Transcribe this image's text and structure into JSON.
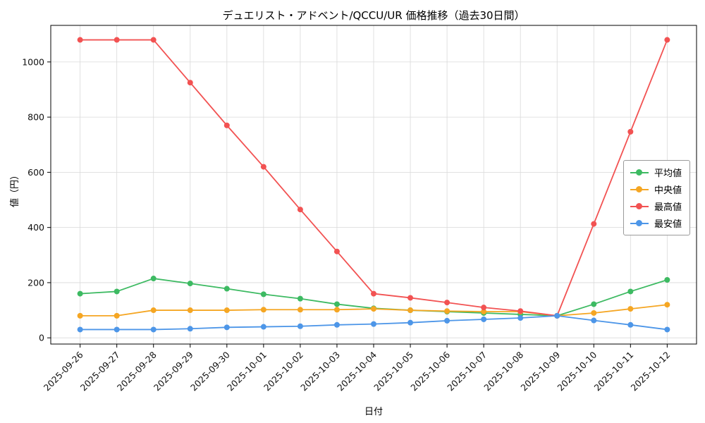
{
  "chart_data": {
    "type": "line",
    "title": "デュエリスト・アドベント/QCCU/UR 価格推移（過去30日間）",
    "xlabel": "日付",
    "ylabel": "値（円）",
    "categories": [
      "2025-09-26",
      "2025-09-27",
      "2025-09-28",
      "2025-09-29",
      "2025-09-30",
      "2025-10-01",
      "2025-10-02",
      "2025-10-03",
      "2025-10-04",
      "2025-10-05",
      "2025-10-06",
      "2025-10-07",
      "2025-10-08",
      "2025-10-09",
      "2025-10-10",
      "2025-10-11",
      "2025-10-12"
    ],
    "series": [
      {
        "name": "平均値",
        "color": "#3dba62",
        "values": [
          160,
          168,
          215,
          197,
          178,
          158,
          142,
          122,
          107,
          100,
          95,
          90,
          85,
          80,
          122,
          168,
          210
        ]
      },
      {
        "name": "中央値",
        "color": "#f5a623",
        "values": [
          80,
          80,
          100,
          100,
          100,
          102,
          102,
          102,
          105,
          100,
          97,
          95,
          95,
          80,
          90,
          105,
          120
        ]
      },
      {
        "name": "最高値",
        "color": "#f25252",
        "values": [
          1080,
          1080,
          1080,
          925,
          770,
          620,
          465,
          313,
          160,
          145,
          128,
          110,
          97,
          80,
          413,
          747,
          1080
        ]
      },
      {
        "name": "最安値",
        "color": "#4d96e8",
        "values": [
          30,
          30,
          30,
          33,
          38,
          40,
          42,
          47,
          50,
          55,
          62,
          67,
          72,
          80,
          63,
          47,
          30
        ]
      }
    ],
    "yticks": [
      0,
      200,
      400,
      600,
      800,
      1000
    ],
    "ylim": [
      -22.5,
      1132.5
    ],
    "grid": true,
    "legend_position": "center-right",
    "colors": {
      "grid": "#d9d9d9",
      "axis": "#000000",
      "background": "#ffffff"
    }
  }
}
